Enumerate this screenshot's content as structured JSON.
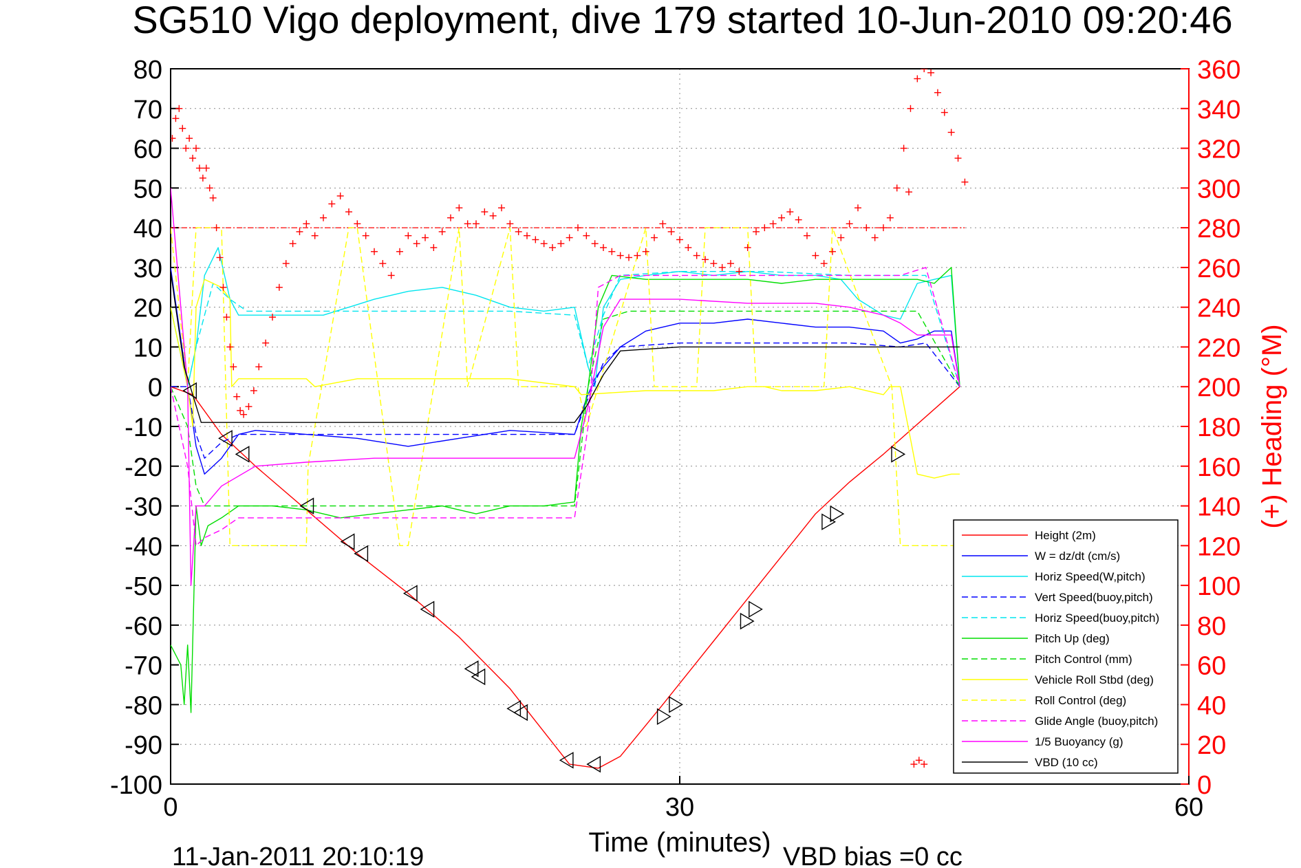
{
  "chart_data": {
    "type": "line",
    "title": "SG510 Vigo deployment, dive 179 started 10-Jun-2010 09:20:46",
    "xlabel": "Time (minutes)",
    "ylabel": "",
    "y2label": "(+) Heading (°M)",
    "xlim": [
      0,
      60
    ],
    "ylim": [
      -100,
      80
    ],
    "y2lim": [
      0,
      360
    ],
    "x_ticks": [
      "0",
      "30",
      "60"
    ],
    "y_ticks": [
      "80",
      "70",
      "60",
      "50",
      "40",
      "30",
      "20",
      "10",
      "0",
      "-10",
      "-20",
      "-30",
      "-40",
      "-50",
      "-60",
      "-70",
      "-80",
      "-90",
      "-100"
    ],
    "y2_ticks": [
      "360",
      "340",
      "320",
      "300",
      "280",
      "260",
      "240",
      "220",
      "200",
      "180",
      "160",
      "140",
      "120",
      "100",
      "80",
      "60",
      "40",
      "20",
      "0"
    ],
    "grid": true,
    "legend_position": "bottom-right",
    "footer_left": "11-Jan-2011 20:10:19",
    "footer_right": "VBD bias =0 cc",
    "colors": {
      "heading": "#ff0000",
      "right_axis": "#ff0000",
      "axes": "#000000",
      "grid": "#888888"
    },
    "heading_reference": 280,
    "series": [
      {
        "name": "Height (2m)",
        "color": "#ff0000",
        "style": "solid",
        "x": [
          0,
          1.3,
          3,
          5,
          8,
          11,
          14,
          17,
          20,
          23.5,
          25.2,
          26.5,
          29,
          32,
          35,
          38,
          40,
          42,
          46.5
        ],
        "y": [
          0,
          -2,
          -12,
          -20,
          -31,
          -42,
          -52,
          -63,
          -76,
          -95,
          -96,
          -93,
          -80,
          -64,
          -48,
          -32,
          -24,
          -17,
          0
        ]
      },
      {
        "name": "W = dz/dt (cm/s)",
        "color": "#0000ff",
        "style": "solid",
        "x": [
          0,
          1,
          1.5,
          2,
          3,
          4,
          5,
          8,
          11,
          14,
          17,
          20,
          23.8,
          24.5,
          25,
          25.5,
          26.5,
          28,
          30,
          32,
          34,
          36,
          38,
          40,
          42,
          43,
          44,
          45,
          46,
          46.5
        ],
        "y": [
          30,
          0,
          -15,
          -22,
          -18,
          -12,
          -11,
          -12,
          -13,
          -15,
          -13,
          -11,
          -12,
          -3,
          2,
          5,
          10,
          14,
          16,
          16,
          17,
          16,
          15,
          15,
          14,
          11,
          12,
          14,
          14,
          0
        ]
      },
      {
        "name": "Horiz Speed(W,pitch)",
        "color": "#00e5ee",
        "style": "solid",
        "x": [
          0,
          1,
          1.5,
          2,
          2.8,
          3.5,
          4,
          6,
          9,
          12,
          14,
          16,
          18,
          20,
          22,
          23.8,
          24.6,
          25,
          25.5,
          26.5,
          28,
          30,
          32,
          34,
          36,
          38,
          39.5,
          40.5,
          42,
          43,
          44,
          45,
          46,
          46.5
        ],
        "y": [
          20,
          0,
          10,
          28,
          35,
          22,
          18,
          18,
          18,
          22,
          24,
          25,
          23,
          20,
          19,
          20,
          5,
          0,
          20,
          27,
          28,
          29,
          28,
          29,
          28,
          28,
          27,
          22,
          18,
          17,
          26,
          27,
          28,
          0
        ]
      },
      {
        "name": "Vert Speed(buoy,pitch)",
        "color": "#0000ff",
        "style": "dashed",
        "x": [
          0,
          1,
          1.5,
          2,
          3,
          4,
          8,
          12,
          16,
          20,
          23.8,
          24.5,
          25.5,
          26.5,
          30,
          35,
          40,
          43,
          44.5,
          46.5
        ],
        "y": [
          0,
          0,
          -12,
          -18,
          -14,
          -12,
          -12,
          -12,
          -12,
          -12,
          -12,
          -4,
          6,
          10,
          11,
          11,
          11,
          10,
          11,
          0
        ]
      },
      {
        "name": "Horiz Speed(buoy,pitch)",
        "color": "#00e5ee",
        "style": "dashed",
        "x": [
          0,
          1,
          1.5,
          2.5,
          3.5,
          4.5,
          8,
          12,
          16,
          20,
          23.8,
          24.6,
          25.5,
          26.5,
          30,
          35,
          40,
          43,
          44.5,
          46.5
        ],
        "y": [
          20,
          0,
          10,
          26,
          22,
          19,
          19,
          19,
          19,
          19,
          18,
          5,
          18,
          28,
          29,
          29,
          28,
          28,
          28,
          0
        ]
      },
      {
        "name": "Pitch Up (deg)",
        "color": "#00dd00",
        "style": "solid",
        "x": [
          0,
          0.6,
          0.8,
          1.0,
          1.2,
          1.5,
          1.8,
          2.2,
          3,
          4,
          6,
          8,
          10,
          12,
          14,
          16,
          18,
          20,
          22,
          23.8,
          24.2,
          24.6,
          25.2,
          26,
          28,
          30,
          32,
          34,
          36,
          38,
          40,
          42,
          44,
          45,
          46,
          46.5
        ],
        "y": [
          -65,
          -70,
          -80,
          -65,
          -82,
          -30,
          -40,
          -35,
          -33,
          -30,
          -30,
          -31,
          -33,
          -32,
          -31,
          -30,
          -32,
          -30,
          -30,
          -29,
          -10,
          0,
          20,
          28,
          27,
          27,
          27,
          27,
          26,
          27,
          27,
          27,
          27,
          26,
          30,
          0
        ]
      },
      {
        "name": "Pitch Control (mm)",
        "color": "#00dd00",
        "style": "dashed",
        "x": [
          0,
          1,
          1.5,
          2,
          3.5,
          8,
          12,
          16,
          20,
          23.8,
          24.6,
          25.5,
          27,
          30,
          35,
          40,
          44,
          46.5
        ],
        "y": [
          0,
          -10,
          -25,
          -30,
          -30,
          -30,
          -30,
          -30,
          -30,
          -30,
          0,
          17,
          19,
          19,
          19,
          19,
          19,
          0
        ]
      },
      {
        "name": "Vehicle Roll Stbd (deg)",
        "color": "#ffff00",
        "style": "solid",
        "x": [
          0,
          1,
          1.3,
          1.5,
          2,
          3,
          3.5,
          3.6,
          4,
          5,
          8,
          8.5,
          11,
          11.5,
          13.5,
          14,
          16,
          17,
          18,
          20,
          23.8,
          24.2,
          28,
          30,
          32,
          34,
          35,
          36,
          38,
          40,
          42,
          42.4,
          43,
          44,
          45,
          46,
          46.5
        ],
        "y": [
          20,
          0,
          -10,
          20,
          27,
          25,
          22,
          0,
          2,
          2,
          2,
          0,
          2,
          2,
          2,
          2,
          2,
          2,
          2,
          2,
          0,
          -2,
          -1,
          -1,
          -1,
          0,
          0,
          -1,
          -1,
          0,
          -2,
          0,
          0,
          -22,
          -23,
          -22,
          -22
        ]
      },
      {
        "name": "Roll Control (deg)",
        "color": "#ffff00",
        "style": "dashed",
        "x": [
          0,
          1,
          1.5,
          3,
          3.5,
          4.5,
          8,
          8.1,
          10.5,
          11,
          13.5,
          14,
          17,
          17.5,
          20,
          20.5,
          24,
          24.5,
          28,
          28.5,
          31,
          31.5,
          34,
          34.5,
          38.5,
          39,
          42.5,
          43,
          46.5
        ],
        "y": [
          40,
          0,
          40,
          40,
          -40,
          -40,
          -40,
          -20,
          40,
          40,
          -40,
          -40,
          40,
          0,
          40,
          0,
          0,
          -10,
          40,
          0,
          0,
          40,
          40,
          0,
          0,
          40,
          0,
          -40,
          -40
        ]
      },
      {
        "name": "Glide Angle (buoy,pitch)",
        "color": "#ff00ff",
        "style": "dashed",
        "x": [
          0,
          1,
          1.5,
          2,
          3,
          4,
          8,
          12,
          16,
          20,
          23.8,
          24.6,
          25.2,
          26.5,
          30,
          35,
          40,
          43,
          44.5,
          46.5
        ],
        "y": [
          0,
          -20,
          -40,
          -38,
          -36,
          -33,
          -33,
          -33,
          -33,
          -33,
          -33,
          -10,
          25,
          28,
          28,
          28,
          28,
          28,
          30,
          0
        ]
      },
      {
        "name": "1/5 Buoyancy (g)",
        "color": "#ff00ff",
        "style": "solid",
        "x": [
          0,
          0.6,
          1,
          1.2,
          1.5,
          2,
          3,
          5,
          8,
          12,
          16,
          20,
          23.8,
          24.6,
          25.5,
          26.5,
          30,
          34,
          38,
          40,
          41,
          42,
          43,
          44,
          45,
          46,
          46.5
        ],
        "y": [
          50,
          20,
          0,
          -50,
          -30,
          -30,
          -25,
          -20,
          -19,
          -18,
          -18,
          -18,
          -18,
          -5,
          15,
          22,
          22,
          21,
          21,
          20,
          19,
          18,
          16,
          13,
          13,
          13,
          0
        ]
      },
      {
        "name": "VBD (10 cc)",
        "color": "#000000",
        "style": "solid",
        "x": [
          0,
          0.8,
          1.3,
          1.8,
          4,
          10,
          16,
          20,
          23.8,
          24.5,
          25.5,
          26.5,
          30,
          35,
          40,
          44,
          46.5
        ],
        "y": [
          29,
          5,
          -2,
          -9,
          -9,
          -9,
          -9,
          -9,
          -9,
          -5,
          3,
          9,
          10,
          10,
          10,
          10,
          10
        ]
      }
    ],
    "heading_x": [
      0.1,
      0.3,
      0.5,
      0.7,
      0.9,
      1.1,
      1.3,
      1.5,
      1.7,
      1.9,
      2.1,
      2.3,
      2.5,
      2.7,
      2.9,
      3.1,
      3.3,
      3.5,
      3.7,
      3.9,
      4.1,
      4.3,
      4.6,
      4.9,
      5.2,
      5.6,
      6.0,
      6.4,
      6.8,
      7.2,
      7.6,
      8.0,
      8.5,
      9.0,
      9.5,
      10.0,
      10.5,
      11.0,
      11.5,
      12.0,
      12.5,
      13.0,
      13.5,
      14.0,
      14.5,
      15.0,
      15.5,
      16.0,
      16.5,
      17.0,
      17.5,
      18.0,
      18.5,
      19.0,
      19.5,
      20.0,
      20.5,
      21.0,
      21.5,
      22.0,
      22.5,
      23.0,
      23.5,
      24.0,
      24.5,
      25.0,
      25.5,
      26.0,
      26.5,
      27.0,
      27.5,
      28.0,
      28.5,
      29.0,
      29.5,
      30.0,
      30.5,
      31.0,
      31.5,
      32.0,
      32.5,
      33.0,
      33.5,
      34.0,
      34.5,
      35.0,
      35.5,
      36.0,
      36.5,
      37.0,
      37.5,
      38.0,
      38.5,
      39.0,
      39.5,
      40.0,
      40.5,
      41.0,
      41.5,
      42.0,
      42.4,
      42.8,
      43.2,
      43.6,
      44.0,
      44.4,
      44.8,
      45.2,
      45.6,
      46.0,
      46.4,
      46.8,
      43.5,
      43.8,
      44.1,
      44.4
    ],
    "heading_y": [
      325,
      335,
      340,
      330,
      320,
      325,
      315,
      320,
      310,
      305,
      310,
      300,
      295,
      280,
      265,
      250,
      235,
      220,
      210,
      195,
      188,
      186,
      190,
      198,
      210,
      222,
      235,
      250,
      262,
      272,
      278,
      282,
      276,
      285,
      292,
      296,
      288,
      282,
      276,
      268,
      262,
      256,
      268,
      276,
      272,
      275,
      270,
      278,
      285,
      290,
      282,
      282,
      288,
      286,
      290,
      282,
      278,
      276,
      274,
      272,
      270,
      272,
      275,
      280,
      276,
      272,
      270,
      268,
      266,
      265,
      266,
      268,
      275,
      282,
      278,
      274,
      270,
      266,
      264,
      262,
      260,
      262,
      258,
      270,
      278,
      280,
      282,
      285,
      288,
      284,
      276,
      266,
      262,
      268,
      275,
      282,
      290,
      280,
      275,
      280,
      285,
      300,
      320,
      340,
      355,
      360,
      358,
      348,
      338,
      328,
      315,
      303,
      298,
      10,
      12,
      10,
      4
    ],
    "markers_down": [
      {
        "x": 1.2,
        "y": -1
      },
      {
        "x": 3.3,
        "y": -13
      },
      {
        "x": 4.3,
        "y": -17
      },
      {
        "x": 8.1,
        "y": -30
      },
      {
        "x": 10.5,
        "y": -39
      },
      {
        "x": 11.3,
        "y": -42
      },
      {
        "x": 14.2,
        "y": -52
      },
      {
        "x": 15.2,
        "y": -56
      },
      {
        "x": 17.8,
        "y": -71
      },
      {
        "x": 18.2,
        "y": -73
      },
      {
        "x": 20.3,
        "y": -81
      },
      {
        "x": 20.7,
        "y": -82
      },
      {
        "x": 23.4,
        "y": -94
      },
      {
        "x": 25.0,
        "y": -95
      }
    ],
    "markers_up": [
      {
        "x": 29.0,
        "y": -83
      },
      {
        "x": 29.7,
        "y": -80
      },
      {
        "x": 33.9,
        "y": -59
      },
      {
        "x": 34.4,
        "y": -56
      },
      {
        "x": 38.7,
        "y": -34
      },
      {
        "x": 39.2,
        "y": -32
      },
      {
        "x": 42.8,
        "y": -17
      }
    ]
  }
}
